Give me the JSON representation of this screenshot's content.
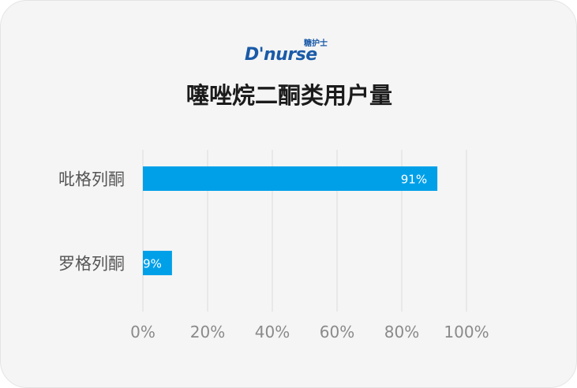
{
  "logo": {
    "main": "D'nurse",
    "sub": "糖护士"
  },
  "chart_data": {
    "type": "bar",
    "orientation": "horizontal",
    "title": "噻唑烷二酮类用户量",
    "categories": [
      "吡格列酮",
      "罗格列酮"
    ],
    "values": [
      91,
      9
    ],
    "value_labels": [
      "91%",
      "9%"
    ],
    "xlim": [
      0,
      100
    ],
    "xticks": [
      "0%",
      "20%",
      "40%",
      "60%",
      "80%",
      "100%"
    ],
    "grid": "vertical",
    "legend": "none",
    "colors": {
      "bar": "#00a0e9",
      "grid": "#e3e3e3",
      "axis_text": "#8a8a8a",
      "category_text": "#555555",
      "bar_label": "#ffffff"
    }
  }
}
